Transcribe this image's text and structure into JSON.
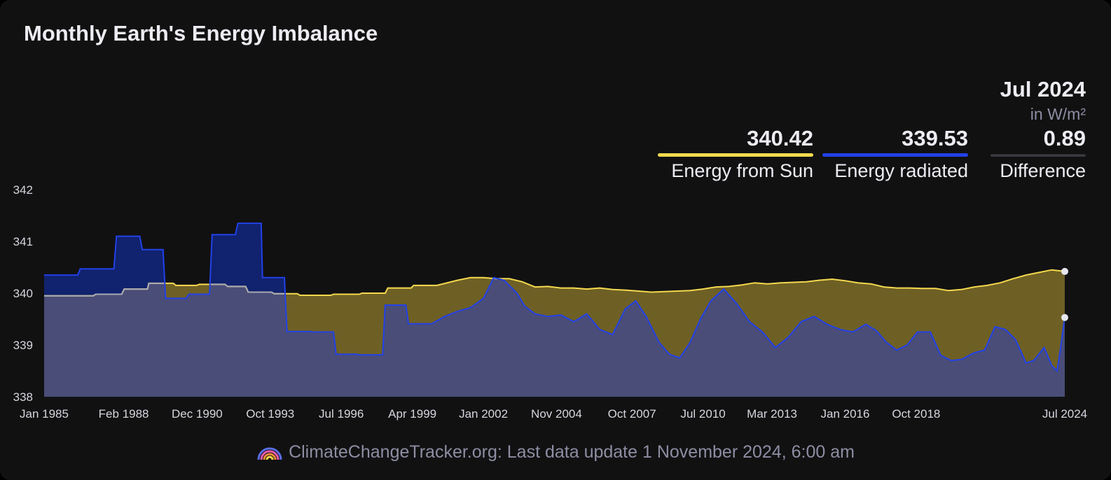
{
  "title": "Monthly Earth's Energy Imbalance",
  "readout": {
    "period": "Jul 2024",
    "unit": "in W/m²",
    "sun_value": "340.42",
    "sun_label": "Energy from Sun",
    "radiated_value": "339.53",
    "radiated_label": "Energy radiated",
    "difference_value": "0.89",
    "difference_label": "Difference"
  },
  "footer": "ClimateChangeTracker.org: Last data update 1 November 2024, 6:00 am",
  "colors": {
    "background": "#111112",
    "sun": "#f4d94e",
    "radiated": "#2241e8",
    "surplus_fill": "#6e6025",
    "deficit_fill": "#11226e",
    "overlap_fill": "#4a4d78"
  },
  "chart_data": {
    "type": "area",
    "x_unit": "year",
    "xlim": [
      1985.0,
      2024.5
    ],
    "ylim": [
      338,
      342
    ],
    "y_ticks": [
      "338",
      "339",
      "340",
      "341",
      "342"
    ],
    "x_ticks": [
      {
        "label": "Jan 1985",
        "x": 1985.0
      },
      {
        "label": "Feb 1988",
        "x": 1988.08
      },
      {
        "label": "Dec 1990",
        "x": 1990.92
      },
      {
        "label": "Oct 1993",
        "x": 1993.75
      },
      {
        "label": "Jul 1996",
        "x": 1996.5
      },
      {
        "label": "Apr 1999",
        "x": 1999.25
      },
      {
        "label": "Jan 2002",
        "x": 2002.0
      },
      {
        "label": "Nov 2004",
        "x": 2004.83
      },
      {
        "label": "Oct 2007",
        "x": 2007.75
      },
      {
        "label": "Jul 2010",
        "x": 2010.5
      },
      {
        "label": "Mar 2013",
        "x": 2013.17
      },
      {
        "label": "Jan 2016",
        "x": 2016.0
      },
      {
        "label": "Oct 2018",
        "x": 2018.75
      },
      {
        "label": "Jul 2024",
        "x": 2024.5
      }
    ],
    "series": [
      {
        "name": "Energy from Sun",
        "color": "#f4d94e",
        "points": [
          [
            1985.0,
            339.95
          ],
          [
            1986.9,
            339.95
          ],
          [
            1987.0,
            339.98
          ],
          [
            1988.0,
            339.98
          ],
          [
            1988.1,
            340.08
          ],
          [
            1989.0,
            340.08
          ],
          [
            1989.05,
            340.19
          ],
          [
            1990.0,
            340.19
          ],
          [
            1990.1,
            340.15
          ],
          [
            1990.9,
            340.15
          ],
          [
            1991.0,
            340.17
          ],
          [
            1992.0,
            340.17
          ],
          [
            1992.1,
            340.13
          ],
          [
            1992.8,
            340.13
          ],
          [
            1992.9,
            340.02
          ],
          [
            1993.8,
            340.02
          ],
          [
            1993.9,
            339.99
          ],
          [
            1994.8,
            339.99
          ],
          [
            1994.9,
            339.96
          ],
          [
            1996.1,
            339.96
          ],
          [
            1996.2,
            339.98
          ],
          [
            1997.2,
            339.98
          ],
          [
            1997.3,
            340.0
          ],
          [
            1998.2,
            340.0
          ],
          [
            1998.3,
            340.1
          ],
          [
            1999.2,
            340.1
          ],
          [
            1999.3,
            340.15
          ],
          [
            2000.2,
            340.15
          ],
          [
            2001.0,
            340.25
          ],
          [
            2001.5,
            340.3
          ],
          [
            2002.0,
            340.3
          ],
          [
            2002.5,
            340.28
          ],
          [
            2003.0,
            340.28
          ],
          [
            2003.5,
            340.22
          ],
          [
            2004.0,
            340.12
          ],
          [
            2004.5,
            340.13
          ],
          [
            2005.0,
            340.1
          ],
          [
            2005.5,
            340.1
          ],
          [
            2006.0,
            340.08
          ],
          [
            2006.5,
            340.1
          ],
          [
            2007.0,
            340.07
          ],
          [
            2007.5,
            340.06
          ],
          [
            2008.0,
            340.04
          ],
          [
            2008.5,
            340.02
          ],
          [
            2009.0,
            340.03
          ],
          [
            2009.5,
            340.04
          ],
          [
            2010.0,
            340.05
          ],
          [
            2010.5,
            340.08
          ],
          [
            2011.0,
            340.12
          ],
          [
            2011.5,
            340.13
          ],
          [
            2012.0,
            340.16
          ],
          [
            2012.5,
            340.2
          ],
          [
            2013.0,
            340.18
          ],
          [
            2013.5,
            340.2
          ],
          [
            2014.0,
            340.21
          ],
          [
            2014.5,
            340.22
          ],
          [
            2015.0,
            340.25
          ],
          [
            2015.5,
            340.27
          ],
          [
            2016.0,
            340.24
          ],
          [
            2016.5,
            340.2
          ],
          [
            2017.0,
            340.18
          ],
          [
            2017.5,
            340.12
          ],
          [
            2018.0,
            340.1
          ],
          [
            2018.5,
            340.1
          ],
          [
            2019.0,
            340.09
          ],
          [
            2019.5,
            340.09
          ],
          [
            2020.0,
            340.05
          ],
          [
            2020.5,
            340.07
          ],
          [
            2021.0,
            340.12
          ],
          [
            2021.5,
            340.15
          ],
          [
            2022.0,
            340.2
          ],
          [
            2022.5,
            340.28
          ],
          [
            2023.0,
            340.35
          ],
          [
            2023.5,
            340.4
          ],
          [
            2024.0,
            340.45
          ],
          [
            2024.5,
            340.42
          ]
        ]
      },
      {
        "name": "Energy radiated",
        "color": "#2241e8",
        "points": [
          [
            1985.0,
            340.35
          ],
          [
            1986.3,
            340.35
          ],
          [
            1986.4,
            340.47
          ],
          [
            1987.7,
            340.47
          ],
          [
            1987.8,
            341.1
          ],
          [
            1988.7,
            341.1
          ],
          [
            1988.8,
            340.84
          ],
          [
            1989.6,
            340.84
          ],
          [
            1989.7,
            339.9
          ],
          [
            1990.5,
            339.9
          ],
          [
            1990.6,
            339.98
          ],
          [
            1991.4,
            339.98
          ],
          [
            1991.5,
            341.13
          ],
          [
            1992.4,
            341.13
          ],
          [
            1992.5,
            341.35
          ],
          [
            1993.4,
            341.35
          ],
          [
            1993.45,
            340.3
          ],
          [
            1994.3,
            340.3
          ],
          [
            1994.4,
            339.26
          ],
          [
            1995.3,
            339.26
          ],
          [
            1995.4,
            339.25
          ],
          [
            1996.2,
            339.25
          ],
          [
            1996.3,
            338.82
          ],
          [
            1997.1,
            338.82
          ],
          [
            1997.2,
            338.81
          ],
          [
            1998.1,
            338.81
          ],
          [
            1998.2,
            339.77
          ],
          [
            1999.0,
            339.77
          ],
          [
            1999.1,
            339.41
          ],
          [
            2000.0,
            339.41
          ],
          [
            2000.5,
            339.55
          ],
          [
            2001.0,
            339.65
          ],
          [
            2001.5,
            339.72
          ],
          [
            2002.0,
            339.9
          ],
          [
            2002.4,
            340.3
          ],
          [
            2002.8,
            340.25
          ],
          [
            2003.3,
            340.0
          ],
          [
            2003.6,
            339.75
          ],
          [
            2004.0,
            339.6
          ],
          [
            2004.5,
            339.55
          ],
          [
            2005.0,
            339.58
          ],
          [
            2005.5,
            339.45
          ],
          [
            2006.0,
            339.6
          ],
          [
            2006.5,
            339.3
          ],
          [
            2007.0,
            339.2
          ],
          [
            2007.5,
            339.7
          ],
          [
            2007.9,
            339.85
          ],
          [
            2008.3,
            339.55
          ],
          [
            2008.8,
            339.05
          ],
          [
            2009.2,
            338.82
          ],
          [
            2009.6,
            338.75
          ],
          [
            2010.0,
            339.05
          ],
          [
            2010.4,
            339.5
          ],
          [
            2010.8,
            339.85
          ],
          [
            2011.3,
            340.08
          ],
          [
            2011.8,
            339.8
          ],
          [
            2012.3,
            339.45
          ],
          [
            2012.8,
            339.25
          ],
          [
            2013.3,
            338.95
          ],
          [
            2013.8,
            339.15
          ],
          [
            2014.3,
            339.45
          ],
          [
            2014.8,
            339.55
          ],
          [
            2015.3,
            339.4
          ],
          [
            2015.8,
            339.3
          ],
          [
            2016.3,
            339.25
          ],
          [
            2016.8,
            339.4
          ],
          [
            2017.2,
            339.28
          ],
          [
            2017.6,
            339.05
          ],
          [
            2018.0,
            338.9
          ],
          [
            2018.4,
            339.0
          ],
          [
            2018.8,
            339.25
          ],
          [
            2019.3,
            339.25
          ],
          [
            2019.7,
            338.8
          ],
          [
            2020.1,
            338.7
          ],
          [
            2020.5,
            338.72
          ],
          [
            2021.0,
            338.85
          ],
          [
            2021.4,
            338.9
          ],
          [
            2021.8,
            339.35
          ],
          [
            2022.2,
            339.3
          ],
          [
            2022.6,
            339.1
          ],
          [
            2023.0,
            338.65
          ],
          [
            2023.3,
            338.7
          ],
          [
            2023.7,
            338.95
          ],
          [
            2024.0,
            338.6
          ],
          [
            2024.2,
            338.5
          ],
          [
            2024.3,
            338.8
          ],
          [
            2024.5,
            339.53
          ]
        ]
      }
    ]
  }
}
